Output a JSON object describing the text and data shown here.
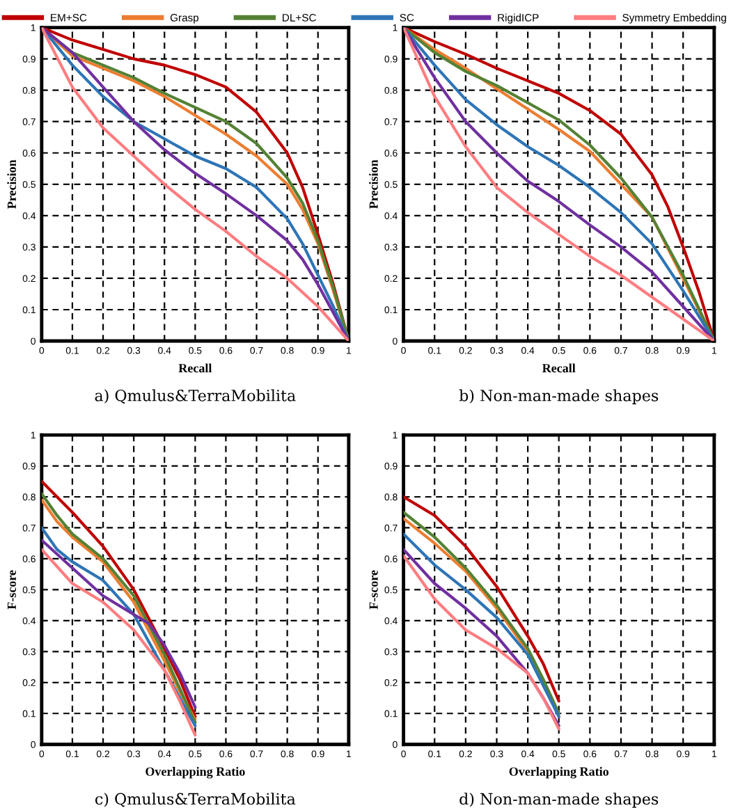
{
  "chart_data": [
    {
      "type": "line",
      "title": "a) Qmulus&TerraMobilita",
      "xlabel": "Recall",
      "ylabel": "Precision",
      "legend": "top",
      "grid": true,
      "line_style": "solid",
      "marker": "none",
      "xlim": [
        0,
        1
      ],
      "ylim": [
        0,
        1
      ],
      "xticks": [
        0,
        0.1,
        0.2,
        0.3,
        0.4,
        0.5,
        0.6,
        0.7,
        0.8,
        0.9,
        1
      ],
      "yticks": [
        0,
        0.1,
        0.2,
        0.3,
        0.4,
        0.5,
        0.6,
        0.7,
        0.8,
        0.9,
        1
      ],
      "series": [
        {
          "name": "EM+SC",
          "color": "#c00000",
          "x": [
            0,
            0.1,
            0.2,
            0.3,
            0.4,
            0.5,
            0.6,
            0.7,
            0.8,
            0.85,
            0.9,
            0.95,
            1
          ],
          "values": [
            1,
            0.96,
            0.93,
            0.9,
            0.88,
            0.85,
            0.81,
            0.73,
            0.6,
            0.49,
            0.34,
            0.18,
            0
          ]
        },
        {
          "name": "Grasp",
          "color": "#ed7d31",
          "x": [
            0,
            0.1,
            0.2,
            0.3,
            0.4,
            0.5,
            0.6,
            0.7,
            0.8,
            0.85,
            0.9,
            0.95,
            1
          ],
          "values": [
            1,
            0.91,
            0.87,
            0.83,
            0.78,
            0.72,
            0.66,
            0.59,
            0.5,
            0.42,
            0.31,
            0.16,
            0
          ]
        },
        {
          "name": "DL+SC",
          "color": "#548235",
          "x": [
            0,
            0.1,
            0.2,
            0.3,
            0.4,
            0.5,
            0.6,
            0.7,
            0.8,
            0.85,
            0.9,
            0.95,
            1
          ],
          "values": [
            1,
            0.92,
            0.88,
            0.84,
            0.79,
            0.745,
            0.7,
            0.63,
            0.52,
            0.44,
            0.32,
            0.17,
            0
          ]
        },
        {
          "name": "SC",
          "color": "#2e75b6",
          "x": [
            0,
            0.1,
            0.2,
            0.3,
            0.4,
            0.5,
            0.6,
            0.7,
            0.8,
            0.85,
            0.9,
            0.95,
            1
          ],
          "values": [
            1,
            0.88,
            0.78,
            0.7,
            0.645,
            0.59,
            0.55,
            0.49,
            0.39,
            0.31,
            0.21,
            0.11,
            0
          ]
        },
        {
          "name": "RigidICP",
          "color": "#7030a0",
          "x": [
            0,
            0.1,
            0.2,
            0.3,
            0.4,
            0.5,
            0.6,
            0.7,
            0.8,
            0.85,
            0.9,
            0.95,
            1
          ],
          "values": [
            1,
            0.92,
            0.81,
            0.7,
            0.61,
            0.535,
            0.47,
            0.4,
            0.32,
            0.26,
            0.18,
            0.09,
            0
          ]
        },
        {
          "name": "Symmetry Embedding",
          "color": "#ff7c80",
          "x": [
            0,
            0.1,
            0.2,
            0.3,
            0.4,
            0.5,
            0.6,
            0.7,
            0.8,
            0.9,
            1
          ],
          "values": [
            1,
            0.81,
            0.68,
            0.59,
            0.5,
            0.42,
            0.35,
            0.27,
            0.2,
            0.11,
            0
          ]
        }
      ]
    },
    {
      "type": "line",
      "title": "b) Non-man-made shapes",
      "xlabel": "Recall",
      "ylabel": "Precision",
      "grid": true,
      "line_style": "solid",
      "marker": "none",
      "xlim": [
        0,
        1
      ],
      "ylim": [
        0,
        1
      ],
      "xticks": [
        0,
        0.1,
        0.2,
        0.3,
        0.4,
        0.5,
        0.6,
        0.7,
        0.8,
        0.9,
        1
      ],
      "yticks": [
        0,
        0.1,
        0.2,
        0.3,
        0.4,
        0.5,
        0.6,
        0.7,
        0.8,
        0.9,
        1
      ],
      "series": [
        {
          "color": "#c00000",
          "x": [
            0,
            0.1,
            0.2,
            0.3,
            0.4,
            0.5,
            0.6,
            0.7,
            0.8,
            0.85,
            0.9,
            0.95,
            1
          ],
          "values": [
            1,
            0.955,
            0.915,
            0.87,
            0.83,
            0.79,
            0.735,
            0.66,
            0.53,
            0.43,
            0.3,
            0.16,
            0
          ]
        },
        {
          "color": "#ed7d31",
          "x": [
            0,
            0.1,
            0.2,
            0.3,
            0.4,
            0.5,
            0.6,
            0.7,
            0.8,
            0.9,
            1
          ],
          "values": [
            1,
            0.93,
            0.87,
            0.805,
            0.74,
            0.675,
            0.605,
            0.5,
            0.395,
            0.2,
            0
          ]
        },
        {
          "color": "#548235",
          "x": [
            0,
            0.1,
            0.2,
            0.3,
            0.4,
            0.5,
            0.6,
            0.7,
            0.8,
            0.9,
            1
          ],
          "values": [
            1,
            0.92,
            0.86,
            0.815,
            0.76,
            0.705,
            0.625,
            0.52,
            0.395,
            0.21,
            0
          ]
        },
        {
          "color": "#2e75b6",
          "x": [
            0,
            0.1,
            0.2,
            0.3,
            0.4,
            0.5,
            0.6,
            0.7,
            0.8,
            0.9,
            1
          ],
          "values": [
            1,
            0.88,
            0.77,
            0.69,
            0.62,
            0.56,
            0.49,
            0.41,
            0.31,
            0.16,
            0
          ]
        },
        {
          "color": "#7030a0",
          "x": [
            0,
            0.1,
            0.2,
            0.3,
            0.4,
            0.5,
            0.6,
            0.7,
            0.8,
            0.9,
            1
          ],
          "values": [
            1,
            0.84,
            0.7,
            0.6,
            0.51,
            0.445,
            0.37,
            0.3,
            0.22,
            0.11,
            0
          ]
        },
        {
          "color": "#ff7c80",
          "x": [
            0,
            0.1,
            0.2,
            0.3,
            0.4,
            0.5,
            0.6,
            0.7,
            0.8,
            0.9,
            1
          ],
          "values": [
            1,
            0.78,
            0.62,
            0.49,
            0.41,
            0.34,
            0.27,
            0.21,
            0.14,
            0.07,
            0
          ]
        }
      ]
    },
    {
      "type": "line",
      "title": "c) Qmulus&TerraMobilita",
      "xlabel": "Overlapping Ratio",
      "ylabel": "F-score",
      "grid": true,
      "line_style": "solid",
      "marker": "none",
      "xlim": [
        0,
        1
      ],
      "ylim": [
        0,
        1
      ],
      "xticks": [
        0,
        0.1,
        0.2,
        0.3,
        0.4,
        0.5,
        0.6,
        0.7,
        0.8,
        0.9,
        1
      ],
      "yticks": [
        0,
        0.1,
        0.2,
        0.3,
        0.4,
        0.5,
        0.6,
        0.7,
        0.8,
        0.9,
        1
      ],
      "series": [
        {
          "color": "#c00000",
          "x": [
            0,
            0.1,
            0.2,
            0.3,
            0.4,
            0.45,
            0.5
          ],
          "values": [
            0.85,
            0.75,
            0.64,
            0.5,
            0.31,
            0.21,
            0.09
          ]
        },
        {
          "color": "#ed7d31",
          "x": [
            0,
            0.05,
            0.1,
            0.2,
            0.3,
            0.4,
            0.45,
            0.5
          ],
          "values": [
            0.79,
            0.72,
            0.67,
            0.59,
            0.46,
            0.27,
            0.17,
            0.08
          ]
        },
        {
          "color": "#548235",
          "x": [
            0,
            0.05,
            0.1,
            0.2,
            0.3,
            0.4,
            0.45,
            0.5
          ],
          "values": [
            0.81,
            0.74,
            0.68,
            0.6,
            0.48,
            0.29,
            0.18,
            0.07
          ]
        },
        {
          "color": "#2e75b6",
          "x": [
            0,
            0.05,
            0.1,
            0.2,
            0.3,
            0.4,
            0.45,
            0.5
          ],
          "values": [
            0.7,
            0.63,
            0.59,
            0.53,
            0.42,
            0.24,
            0.15,
            0.06
          ]
        },
        {
          "color": "#7030a0",
          "x": [
            0,
            0.1,
            0.2,
            0.3,
            0.35,
            0.4,
            0.45,
            0.5
          ],
          "values": [
            0.66,
            0.57,
            0.48,
            0.42,
            0.39,
            0.32,
            0.23,
            0.12
          ]
        },
        {
          "color": "#ff7c80",
          "x": [
            0,
            0.1,
            0.2,
            0.3,
            0.4,
            0.45,
            0.5
          ],
          "values": [
            0.63,
            0.52,
            0.46,
            0.37,
            0.24,
            0.14,
            0.03
          ]
        }
      ]
    },
    {
      "type": "line",
      "title": "d) Non-man-made shapes",
      "xlabel": "Overlapping Ratio",
      "ylabel": "F-score",
      "grid": true,
      "line_style": "solid",
      "marker": "none",
      "xlim": [
        0,
        1
      ],
      "ylim": [
        0,
        1
      ],
      "xticks": [
        0,
        0.1,
        0.2,
        0.3,
        0.4,
        0.5,
        0.6,
        0.7,
        0.8,
        0.9,
        1
      ],
      "yticks": [
        0,
        0.1,
        0.2,
        0.3,
        0.4,
        0.5,
        0.6,
        0.7,
        0.8,
        0.9,
        1
      ],
      "series": [
        {
          "color": "#c00000",
          "x": [
            0,
            0.1,
            0.2,
            0.3,
            0.4,
            0.45,
            0.5
          ],
          "values": [
            0.8,
            0.74,
            0.64,
            0.51,
            0.35,
            0.26,
            0.14
          ]
        },
        {
          "color": "#ed7d31",
          "x": [
            0,
            0.1,
            0.2,
            0.3,
            0.4,
            0.45,
            0.5
          ],
          "values": [
            0.73,
            0.65,
            0.56,
            0.44,
            0.3,
            0.2,
            0.09
          ]
        },
        {
          "color": "#548235",
          "x": [
            0,
            0.1,
            0.2,
            0.3,
            0.4,
            0.45,
            0.5
          ],
          "values": [
            0.75,
            0.67,
            0.57,
            0.45,
            0.31,
            0.21,
            0.1
          ]
        },
        {
          "color": "#2e75b6",
          "x": [
            0,
            0.1,
            0.2,
            0.3,
            0.4,
            0.45,
            0.5
          ],
          "values": [
            0.68,
            0.58,
            0.5,
            0.41,
            0.29,
            0.19,
            0.09
          ]
        },
        {
          "color": "#7030a0",
          "x": [
            0,
            0.1,
            0.2,
            0.3,
            0.4,
            0.45,
            0.5
          ],
          "values": [
            0.63,
            0.52,
            0.44,
            0.35,
            0.23,
            0.15,
            0.06
          ]
        },
        {
          "color": "#ff7c80",
          "x": [
            0,
            0.1,
            0.2,
            0.3,
            0.4,
            0.45,
            0.5
          ],
          "values": [
            0.61,
            0.47,
            0.37,
            0.31,
            0.23,
            0.15,
            0.05
          ]
        }
      ]
    }
  ]
}
